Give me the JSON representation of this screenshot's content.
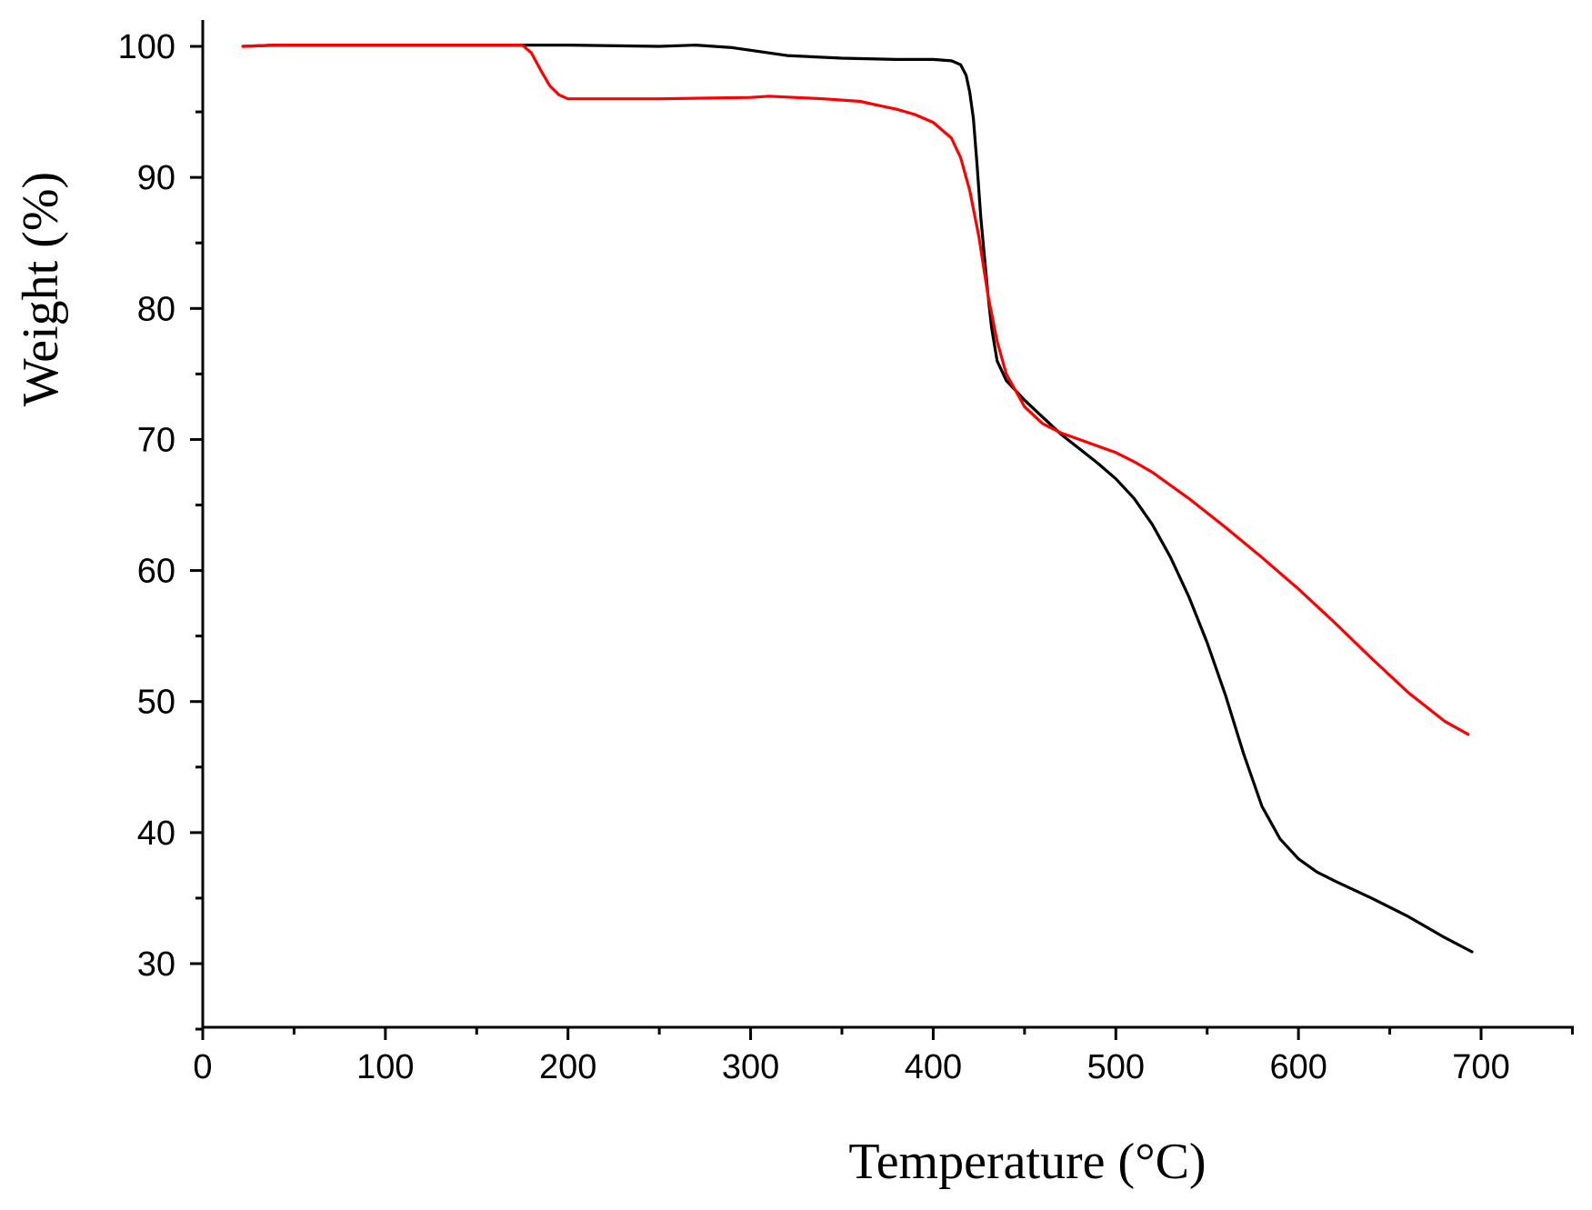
{
  "chart_data": {
    "type": "line",
    "xlabel": "Temperature (°C)",
    "ylabel": "Weight (%)",
    "xlim": [
      0,
      750
    ],
    "ylim": [
      25,
      102
    ],
    "x_ticks": [
      0,
      100,
      200,
      300,
      400,
      500,
      600,
      700
    ],
    "x_tick_labels": [
      "0",
      "100",
      "200",
      "300",
      "400",
      "500",
      "600",
      "700"
    ],
    "x_minor_step": 50,
    "y_ticks": [
      30,
      40,
      50,
      60,
      70,
      80,
      90,
      100
    ],
    "y_tick_labels": [
      "30",
      "40",
      "50",
      "60",
      "70",
      "80",
      "90",
      "100"
    ],
    "y_minor_step": 5,
    "grid": false,
    "legend": "none",
    "series": [
      {
        "color": "#000000",
        "x": [
          22,
          40,
          100,
          150,
          200,
          250,
          270,
          290,
          300,
          320,
          350,
          380,
          400,
          410,
          415,
          418,
          420,
          422,
          424,
          426,
          428,
          430,
          432,
          435,
          440,
          450,
          460,
          470,
          480,
          490,
          500,
          510,
          520,
          530,
          540,
          550,
          560,
          570,
          580,
          590,
          600,
          610,
          620,
          640,
          660,
          680,
          695
        ],
        "y": [
          100.0,
          100.1,
          100.1,
          100.1,
          100.1,
          100.0,
          100.1,
          99.9,
          99.7,
          99.3,
          99.1,
          99.0,
          99.0,
          98.9,
          98.6,
          97.8,
          96.5,
          94.5,
          91.0,
          87.0,
          84.0,
          81.0,
          78.5,
          76.0,
          74.5,
          73.0,
          71.7,
          70.4,
          69.3,
          68.2,
          67.0,
          65.5,
          63.5,
          61.0,
          58.0,
          54.5,
          50.5,
          46.0,
          42.0,
          39.5,
          38.0,
          37.0,
          36.3,
          35.0,
          33.6,
          32.0,
          30.9
        ]
      },
      {
        "color": "#ff0000",
        "x": [
          22,
          40,
          100,
          150,
          175,
          180,
          185,
          190,
          195,
          200,
          210,
          250,
          300,
          310,
          340,
          360,
          370,
          380,
          390,
          400,
          410,
          415,
          420,
          425,
          430,
          435,
          440,
          450,
          460,
          470,
          480,
          490,
          500,
          510,
          520,
          540,
          560,
          580,
          600,
          620,
          640,
          660,
          680,
          693
        ],
        "y": [
          100.0,
          100.1,
          100.1,
          100.1,
          100.1,
          99.5,
          98.2,
          97.0,
          96.3,
          96.0,
          96.0,
          96.0,
          96.1,
          96.2,
          96.0,
          95.8,
          95.5,
          95.2,
          94.8,
          94.2,
          93.0,
          91.5,
          89.0,
          85.5,
          81.0,
          77.5,
          75.0,
          72.5,
          71.2,
          70.5,
          70.0,
          69.5,
          69.0,
          68.3,
          67.5,
          65.5,
          63.3,
          61.0,
          58.6,
          56.0,
          53.3,
          50.7,
          48.5,
          47.5
        ]
      }
    ]
  }
}
